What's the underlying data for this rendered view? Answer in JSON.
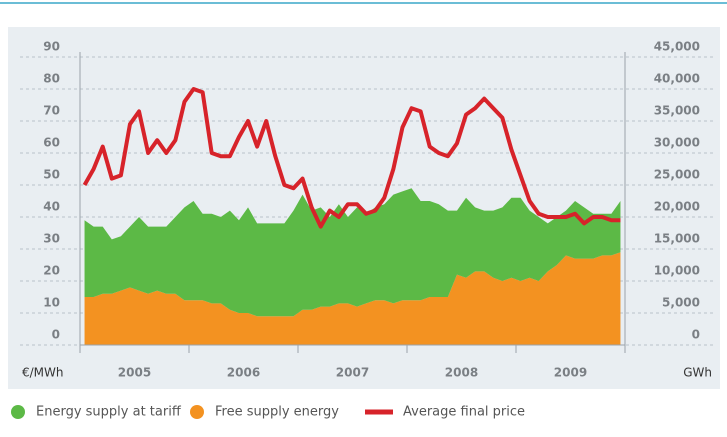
{
  "chart_data": {
    "type": "area-line",
    "categories": [
      null,
      null,
      null,
      null,
      null,
      null,
      "2005",
      null,
      null,
      null,
      null,
      null,
      null,
      null,
      null,
      null,
      null,
      null,
      "2006",
      null,
      null,
      null,
      null,
      null,
      null,
      null,
      null,
      null,
      null,
      null,
      "2007",
      null,
      null,
      null,
      null,
      null,
      null,
      null,
      null,
      null,
      null,
      null,
      "2008",
      null,
      null,
      null,
      null,
      null,
      null,
      null,
      null,
      null,
      null,
      null,
      "2009",
      null,
      null,
      null,
      null,
      null
    ],
    "ylabel": "€/MWh",
    "y2label": "GWh",
    "ylim": [
      0,
      90
    ],
    "yticks": [
      0,
      10,
      20,
      30,
      40,
      50,
      60,
      70,
      80,
      90
    ],
    "y2lim": [
      0,
      45000
    ],
    "y2ticks": [
      0,
      {
        "value": 5000,
        "label": "5,000"
      },
      {
        "value": 10000,
        "label": "10,000"
      },
      {
        "value": 15000,
        "label": "15,000"
      },
      {
        "value": 20000,
        "label": "20,000"
      },
      {
        "value": 25000,
        "label": "25,000"
      },
      {
        "value": 30000,
        "label": "30,000"
      },
      {
        "value": 35000,
        "label": "35,000"
      },
      {
        "value": 40000,
        "label": "40,000"
      },
      {
        "value": 45000,
        "label": "45,000"
      }
    ],
    "grid": true,
    "stacked": true,
    "legend": "bottom",
    "series": [
      {
        "name": "Energy supply at tariff",
        "color": "#5cb946",
        "kind": "area",
        "axis": "y2",
        "values": [
          12000,
          11000,
          10500,
          8500,
          8500,
          9500,
          11500,
          10500,
          10000,
          10500,
          12000,
          14500,
          15500,
          13500,
          14000,
          13500,
          15500,
          14500,
          16500,
          14500,
          14500,
          14500,
          14500,
          16500,
          18000,
          15500,
          15500,
          14000,
          15500,
          13500,
          15500,
          14000,
          14500,
          15000,
          17000,
          17000,
          17500,
          15500,
          15000,
          14500,
          13500,
          10000,
          12500,
          10000,
          9500,
          10500,
          11500,
          12500,
          13000,
          10500,
          10000,
          7500,
          7500,
          7000,
          9000,
          8000,
          7000,
          6500,
          6500,
          8000
        ]
      },
      {
        "name": "Free supply energy",
        "color": "#f39221",
        "kind": "area",
        "axis": "y2",
        "values": [
          7500,
          7500,
          8000,
          8000,
          8500,
          9000,
          8500,
          8000,
          8500,
          8000,
          8000,
          7000,
          7000,
          7000,
          6500,
          6500,
          5500,
          5000,
          5000,
          4500,
          4500,
          4500,
          4500,
          4500,
          5500,
          5500,
          6000,
          6000,
          6500,
          6500,
          6000,
          6500,
          7000,
          7000,
          6500,
          7000,
          7000,
          7000,
          7500,
          7500,
          7500,
          11000,
          10500,
          11500,
          11500,
          10500,
          10000,
          10500,
          10000,
          10500,
          10000,
          11500,
          12500,
          14000,
          13500,
          13500,
          13500,
          14000,
          14000,
          14500
        ]
      },
      {
        "name": "Average final price",
        "color": "#d7232a",
        "kind": "line",
        "values": [
          50,
          55,
          62,
          52,
          53,
          69,
          73,
          60,
          64,
          60,
          64,
          76,
          80,
          79,
          60,
          59,
          59,
          65,
          70,
          62,
          70,
          59,
          50,
          49,
          52,
          43,
          37,
          42,
          40,
          44,
          44,
          41,
          42,
          46,
          55,
          68,
          74,
          73,
          62,
          60,
          59,
          63,
          72,
          74,
          77,
          74,
          71,
          61,
          53,
          45,
          41,
          40,
          40,
          40,
          41,
          38,
          40,
          40,
          39,
          39
        ]
      }
    ]
  }
}
